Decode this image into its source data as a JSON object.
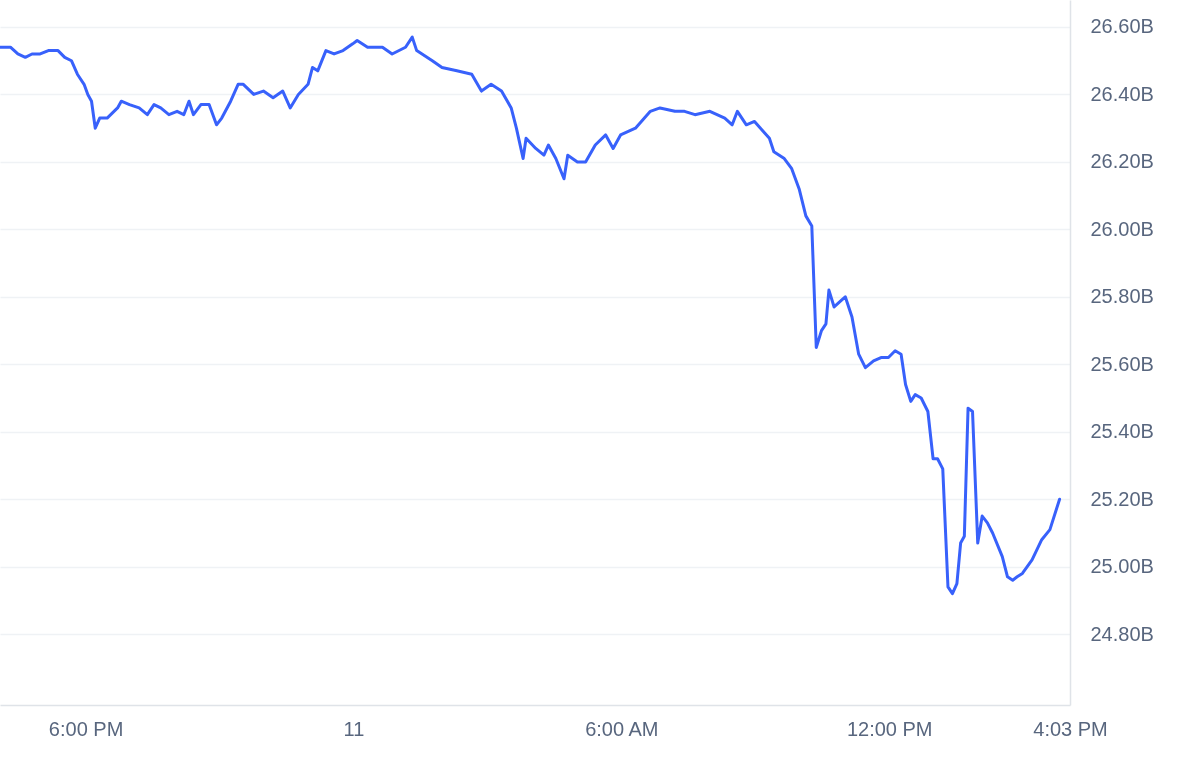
{
  "chart_data": {
    "type": "line",
    "x": [
      "--01-10T16:05",
      "--01-10T16:19",
      "--01-10T16:29",
      "--01-10T16:39",
      "--01-10T16:48",
      "--01-10T16:59",
      "--01-10T17:10",
      "--01-10T17:23",
      "--01-10T17:32",
      "--01-10T17:41",
      "--01-10T17:49",
      "--01-10T17:58",
      "--01-10T18:03",
      "--01-10T18:08",
      "--01-10T18:13",
      "--01-10T18:19",
      "--01-10T18:29",
      "--01-10T18:43",
      "--01-10T18:48",
      "--01-10T18:59",
      "--01-10T19:12",
      "--01-10T19:23",
      "--01-10T19:32",
      "--01-10T19:41",
      "--01-10T19:52",
      "--01-10T20:03",
      "--01-10T20:12",
      "--01-10T20:19",
      "--01-10T20:25",
      "--01-10T20:35",
      "--01-10T20:46",
      "--01-10T20:56",
      "--01-10T21:03",
      "--01-10T21:15",
      "--01-10T21:25",
      "--01-10T21:32",
      "--01-10T21:46",
      "--01-10T21:59",
      "--01-10T22:12",
      "--01-10T22:25",
      "--01-10T22:35",
      "--01-10T22:46",
      "--01-10T22:59",
      "--01-10T23:05",
      "--01-10T23:12",
      "--01-10T23:23",
      "--01-10T23:34",
      "--01-10T23:46",
      "--01-10T23:59",
      "--01-11T00:05",
      "--01-11T00:19",
      "--01-11T00:39",
      "--01-11T00:52",
      "--01-11T01:10",
      "--01-11T01:19",
      "--01-11T01:25",
      "--01-11T01:46",
      "--01-11T01:59",
      "--01-11T02:19",
      "--01-11T02:39",
      "--01-11T02:52",
      "--01-11T03:05",
      "--01-11T03:19",
      "--01-11T03:32",
      "--01-11T03:39",
      "--01-11T03:48",
      "--01-11T03:52",
      "--01-11T04:05",
      "--01-11T04:16",
      "--01-11T04:22",
      "--01-11T04:32",
      "--01-11T04:43",
      "--01-11T04:48",
      "--01-11T05:01",
      "--01-11T05:12",
      "--01-11T05:25",
      "--01-11T05:39",
      "--01-11T05:49",
      "--01-11T05:59",
      "--01-11T06:19",
      "--01-11T06:39",
      "--01-11T06:52",
      "--01-11T07:12",
      "--01-11T07:25",
      "--01-11T07:39",
      "--01-11T07:59",
      "--01-11T08:19",
      "--01-11T08:29",
      "--01-11T08:36",
      "--01-11T08:48",
      "--01-11T08:59",
      "--01-11T09:19",
      "--01-11T09:25",
      "--01-11T09:39",
      "--01-11T09:49",
      "--01-11T09:59",
      "--01-11T10:08",
      "--01-11T10:16",
      "--01-11T10:22",
      "--01-11T10:29",
      "--01-11T10:35",
      "--01-11T10:39",
      "--01-11T10:46",
      "--01-11T10:56",
      "--01-11T11:01",
      "--01-11T11:10",
      "--01-11T11:19",
      "--01-11T11:28",
      "--01-11T11:39",
      "--01-11T11:49",
      "--01-11T11:59",
      "--01-11T12:08",
      "--01-11T12:16",
      "--01-11T12:22",
      "--01-11T12:29",
      "--01-11T12:35",
      "--01-11T12:43",
      "--01-11T12:52",
      "--01-11T12:59",
      "--01-11T13:05",
      "--01-11T13:12",
      "--01-11T13:19",
      "--01-11T13:25",
      "--01-11T13:31",
      "--01-11T13:36",
      "--01-11T13:41",
      "--01-11T13:46",
      "--01-11T13:52",
      "--01-11T13:59",
      "--01-11T14:05",
      "--01-11T14:12",
      "--01-11T14:19",
      "--01-11T14:32",
      "--01-11T14:39",
      "--01-11T14:46",
      "--01-11T14:52",
      "--01-11T14:59",
      "--01-11T15:12",
      "--01-11T15:25",
      "--01-11T15:36",
      "--01-11T15:49"
    ],
    "series": [
      {
        "color": "#3861fb",
        "values": [
          26.54,
          26.54,
          26.52,
          26.51,
          26.52,
          26.52,
          26.53,
          26.53,
          26.51,
          26.5,
          26.46,
          26.43,
          26.4,
          26.38,
          26.3,
          26.33,
          26.33,
          26.36,
          26.38,
          26.37,
          26.36,
          26.34,
          26.37,
          26.36,
          26.34,
          26.35,
          26.34,
          26.38,
          26.34,
          26.37,
          26.37,
          26.31,
          26.33,
          26.38,
          26.43,
          26.43,
          26.4,
          26.41,
          26.39,
          26.41,
          26.36,
          26.4,
          26.43,
          26.48,
          26.47,
          26.53,
          26.52,
          26.53,
          26.55,
          26.56,
          26.54,
          26.54,
          26.52,
          26.54,
          26.57,
          26.53,
          26.5,
          26.48,
          26.47,
          26.46,
          26.41,
          26.43,
          26.41,
          26.36,
          26.3,
          26.21,
          26.27,
          26.24,
          26.22,
          26.25,
          26.21,
          26.15,
          26.22,
          26.2,
          26.2,
          26.25,
          26.28,
          26.24,
          26.28,
          26.3,
          26.35,
          26.36,
          26.35,
          26.35,
          26.34,
          26.35,
          26.33,
          26.31,
          26.35,
          26.31,
          26.32,
          26.27,
          26.23,
          26.21,
          26.18,
          26.12,
          26.04,
          26.01,
          25.65,
          25.7,
          25.72,
          25.82,
          25.77,
          25.79,
          25.8,
          25.74,
          25.63,
          25.59,
          25.61,
          25.62,
          25.62,
          25.64,
          25.63,
          25.54,
          25.49,
          25.51,
          25.5,
          25.46,
          25.32,
          25.32,
          25.29,
          24.94,
          24.92,
          24.95,
          25.07,
          25.09,
          25.47,
          25.46,
          25.07,
          25.15,
          25.13,
          25.1,
          25.03,
          24.97,
          24.96,
          24.97,
          24.98,
          25.02,
          25.08,
          25.11,
          25.2
        ]
      }
    ],
    "xlim": [
      "--01-10T16:05",
      "--01-11T16:03"
    ],
    "xticks": [
      {
        "value": "--01-10T18:00",
        "label": "6:00 PM"
      },
      {
        "value": "--01-11T00:00",
        "label": "11"
      },
      {
        "value": "--01-11T06:00",
        "label": "6:00 AM"
      },
      {
        "value": "--01-11T12:00",
        "label": "12:00 PM"
      },
      {
        "value": "--01-11T16:03",
        "label": "4:03 PM"
      }
    ],
    "ylim": [
      24.59,
      26.68
    ],
    "yticks": [
      {
        "value": 24.8,
        "label": "24.80B"
      },
      {
        "value": 25,
        "label": "25.00B"
      },
      {
        "value": 25.2,
        "label": "25.20B"
      },
      {
        "value": 25.4,
        "label": "25.40B"
      },
      {
        "value": 25.6,
        "label": "25.60B"
      },
      {
        "value": 25.8,
        "label": "25.80B"
      },
      {
        "value": 26,
        "label": "26.00B"
      },
      {
        "value": 26.2,
        "label": "26.20B"
      },
      {
        "value": 26.4,
        "label": "26.40B"
      },
      {
        "value": 26.6,
        "label": "26.60B"
      }
    ],
    "grid": "y"
  }
}
